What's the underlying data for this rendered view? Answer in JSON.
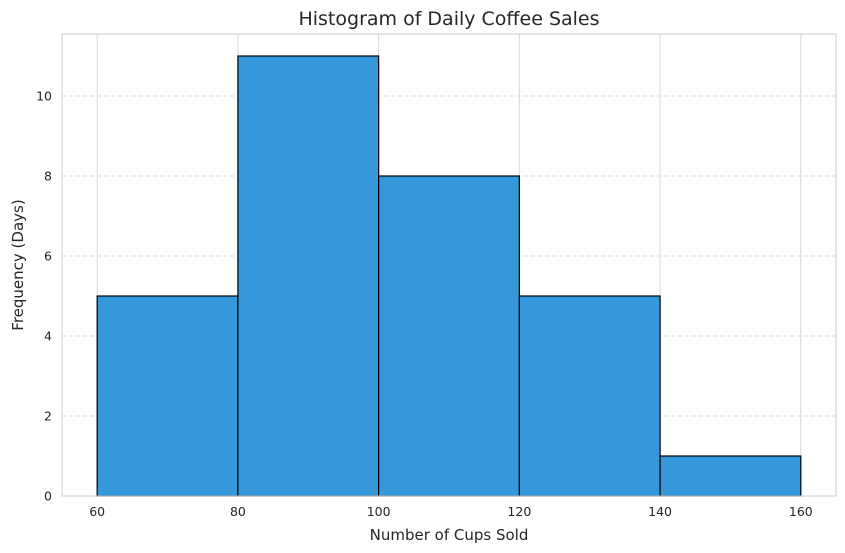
{
  "chart_data": {
    "type": "bar",
    "title": "Histogram of Daily Coffee Sales",
    "xlabel": "Number of Cups Sold",
    "ylabel": "Frequency (Days)",
    "bins": [
      {
        "start": 60,
        "end": 80,
        "value": 5
      },
      {
        "start": 80,
        "end": 100,
        "value": 11
      },
      {
        "start": 100,
        "end": 120,
        "value": 8
      },
      {
        "start": 120,
        "end": 140,
        "value": 5
      },
      {
        "start": 140,
        "end": 160,
        "value": 1
      }
    ],
    "xlim": [
      55,
      165
    ],
    "ylim": [
      0,
      11.55
    ],
    "xticks": [
      60,
      80,
      100,
      120,
      140,
      160
    ],
    "yticks": [
      0,
      2,
      4,
      6,
      8,
      10
    ],
    "grid": true,
    "bar_color": "#3498db",
    "edge_color": "#000000",
    "grid_color": "#d9d9d9",
    "axes_edge_color": "#cccccc"
  }
}
